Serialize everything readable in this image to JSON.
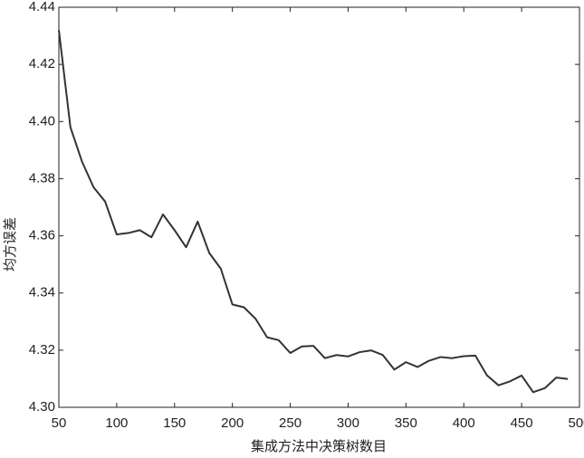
{
  "chart_data": {
    "type": "line",
    "x_label": "集成方法中决策树数目",
    "y_label": "均方误差",
    "x": [
      50,
      60,
      70,
      80,
      90,
      100,
      110,
      120,
      130,
      140,
      150,
      160,
      170,
      180,
      190,
      200,
      210,
      220,
      230,
      240,
      250,
      260,
      270,
      280,
      290,
      300,
      310,
      320,
      330,
      340,
      350,
      360,
      370,
      380,
      390,
      400,
      410,
      420,
      430,
      440,
      450,
      460,
      470,
      480,
      490
    ],
    "series": [
      {
        "color": "#333333",
        "values": [
          4.432,
          4.398,
          4.386,
          4.377,
          4.372,
          4.3605,
          4.361,
          4.362,
          4.3595,
          4.3675,
          4.362,
          4.356,
          4.365,
          4.354,
          4.3485,
          4.336,
          4.335,
          4.331,
          4.3245,
          4.3235,
          4.319,
          4.3213,
          4.3215,
          4.3172,
          4.3183,
          4.3178,
          4.3193,
          4.3199,
          4.3183,
          4.3132,
          4.3158,
          4.3141,
          4.3163,
          4.3176,
          4.3172,
          4.3179,
          4.3181,
          4.3112,
          4.3077,
          4.3091,
          4.3111,
          4.3053,
          4.3067,
          4.3104,
          4.3099
        ]
      }
    ],
    "xlim": [
      50,
      500
    ],
    "xticks": [
      50,
      100,
      150,
      200,
      250,
      300,
      350,
      400,
      450,
      500
    ],
    "ylim": [
      4.3,
      4.44
    ],
    "yticks": [
      {
        "value": 4.3,
        "label": "4.30"
      },
      4.32,
      4.34,
      4.36,
      4.38,
      {
        "value": 4.4,
        "label": "4.40"
      },
      4.42,
      4.44
    ],
    "grid": false
  }
}
